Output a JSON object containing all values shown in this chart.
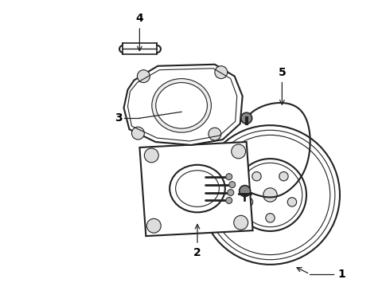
{
  "background_color": "#ffffff",
  "line_color": "#222222",
  "label_color": "#000000",
  "label_fontsize": 10,
  "figsize": [
    4.9,
    3.6
  ],
  "dpi": 100
}
